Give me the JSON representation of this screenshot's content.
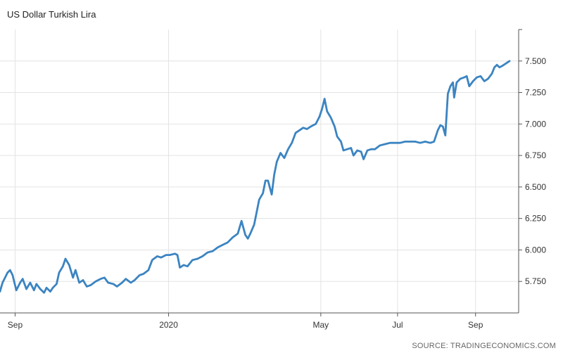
{
  "chart_data": {
    "type": "line",
    "title": "US Dollar Turkish Lira",
    "source": "SOURCE: TRADINGECONOMICS.COM",
    "xlabel": "",
    "ylabel": "",
    "x_ticks": [
      {
        "label": "Sep",
        "x": "2019-09-01"
      },
      {
        "label": "2020",
        "x": "2020-01-01"
      },
      {
        "label": "May",
        "x": "2020-05-01"
      },
      {
        "label": "Jul",
        "x": "2020-07-01"
      },
      {
        "label": "Sep",
        "x": "2020-09-01"
      }
    ],
    "y_ticks": [
      "5.750",
      "6.000",
      "6.250",
      "6.500",
      "6.750",
      "7.000",
      "7.250",
      "7.500"
    ],
    "ylim": [
      5.5,
      7.75
    ],
    "xlim": [
      "2019-08-20",
      "2020-09-28"
    ],
    "grid": true,
    "axis_side": "right",
    "line_color": "#3b84c1",
    "series": [
      {
        "name": "",
        "points": [
          [
            "2019-08-20",
            5.67
          ],
          [
            "2019-08-22",
            5.74
          ],
          [
            "2019-08-26",
            5.82
          ],
          [
            "2019-08-28",
            5.84
          ],
          [
            "2019-08-30",
            5.8
          ],
          [
            "2019-09-02",
            5.68
          ],
          [
            "2019-09-05",
            5.74
          ],
          [
            "2019-09-07",
            5.77
          ],
          [
            "2019-09-10",
            5.69
          ],
          [
            "2019-09-13",
            5.74
          ],
          [
            "2019-09-16",
            5.68
          ],
          [
            "2019-09-18",
            5.73
          ],
          [
            "2019-09-21",
            5.69
          ],
          [
            "2019-09-24",
            5.66
          ],
          [
            "2019-09-26",
            5.7
          ],
          [
            "2019-09-29",
            5.67
          ],
          [
            "2019-10-01",
            5.7
          ],
          [
            "2019-10-04",
            5.73
          ],
          [
            "2019-10-06",
            5.82
          ],
          [
            "2019-10-09",
            5.87
          ],
          [
            "2019-10-11",
            5.93
          ],
          [
            "2019-10-14",
            5.88
          ],
          [
            "2019-10-17",
            5.78
          ],
          [
            "2019-10-19",
            5.84
          ],
          [
            "2019-10-22",
            5.74
          ],
          [
            "2019-10-25",
            5.76
          ],
          [
            "2019-10-28",
            5.71
          ],
          [
            "2019-10-31",
            5.72
          ],
          [
            "2019-11-04",
            5.75
          ],
          [
            "2019-11-08",
            5.77
          ],
          [
            "2019-11-11",
            5.78
          ],
          [
            "2019-11-14",
            5.74
          ],
          [
            "2019-11-18",
            5.73
          ],
          [
            "2019-11-21",
            5.71
          ],
          [
            "2019-11-25",
            5.74
          ],
          [
            "2019-11-28",
            5.77
          ],
          [
            "2019-12-02",
            5.74
          ],
          [
            "2019-12-05",
            5.76
          ],
          [
            "2019-12-09",
            5.8
          ],
          [
            "2019-12-12",
            5.81
          ],
          [
            "2019-12-16",
            5.84
          ],
          [
            "2019-12-19",
            5.92
          ],
          [
            "2019-12-23",
            5.95
          ],
          [
            "2019-12-26",
            5.94
          ],
          [
            "2019-12-30",
            5.96
          ],
          [
            "2020-01-02",
            5.96
          ],
          [
            "2020-01-06",
            5.97
          ],
          [
            "2020-01-08",
            5.96
          ],
          [
            "2020-01-10",
            5.86
          ],
          [
            "2020-01-13",
            5.88
          ],
          [
            "2020-01-16",
            5.87
          ],
          [
            "2020-01-20",
            5.92
          ],
          [
            "2020-01-24",
            5.93
          ],
          [
            "2020-01-28",
            5.95
          ],
          [
            "2020-02-01",
            5.98
          ],
          [
            "2020-02-05",
            5.99
          ],
          [
            "2020-02-09",
            6.02
          ],
          [
            "2020-02-13",
            6.04
          ],
          [
            "2020-02-17",
            6.06
          ],
          [
            "2020-02-21",
            6.1
          ],
          [
            "2020-02-25",
            6.13
          ],
          [
            "2020-02-28",
            6.23
          ],
          [
            "2020-03-02",
            6.12
          ],
          [
            "2020-03-04",
            6.09
          ],
          [
            "2020-03-06",
            6.13
          ],
          [
            "2020-03-09",
            6.2
          ],
          [
            "2020-03-11",
            6.3
          ],
          [
            "2020-03-13",
            6.4
          ],
          [
            "2020-03-16",
            6.45
          ],
          [
            "2020-03-18",
            6.55
          ],
          [
            "2020-03-20",
            6.55
          ],
          [
            "2020-03-23",
            6.44
          ],
          [
            "2020-03-25",
            6.6
          ],
          [
            "2020-03-27",
            6.7
          ],
          [
            "2020-03-30",
            6.77
          ],
          [
            "2020-04-02",
            6.73
          ],
          [
            "2020-04-05",
            6.8
          ],
          [
            "2020-04-08",
            6.85
          ],
          [
            "2020-04-11",
            6.93
          ],
          [
            "2020-04-14",
            6.95
          ],
          [
            "2020-04-17",
            6.97
          ],
          [
            "2020-04-20",
            6.96
          ],
          [
            "2020-04-23",
            6.98
          ],
          [
            "2020-04-27",
            7.0
          ],
          [
            "2020-04-30",
            7.06
          ],
          [
            "2020-05-02",
            7.12
          ],
          [
            "2020-05-04",
            7.2
          ],
          [
            "2020-05-06",
            7.1
          ],
          [
            "2020-05-09",
            7.05
          ],
          [
            "2020-05-12",
            6.98
          ],
          [
            "2020-05-14",
            6.9
          ],
          [
            "2020-05-17",
            6.86
          ],
          [
            "2020-05-19",
            6.79
          ],
          [
            "2020-05-22",
            6.8
          ],
          [
            "2020-05-25",
            6.81
          ],
          [
            "2020-05-27",
            6.75
          ],
          [
            "2020-05-30",
            6.79
          ],
          [
            "2020-06-02",
            6.78
          ],
          [
            "2020-06-04",
            6.72
          ],
          [
            "2020-06-07",
            6.79
          ],
          [
            "2020-06-10",
            6.8
          ],
          [
            "2020-06-13",
            6.8
          ],
          [
            "2020-06-17",
            6.83
          ],
          [
            "2020-06-21",
            6.84
          ],
          [
            "2020-06-25",
            6.85
          ],
          [
            "2020-06-29",
            6.85
          ],
          [
            "2020-07-03",
            6.85
          ],
          [
            "2020-07-07",
            6.86
          ],
          [
            "2020-07-11",
            6.86
          ],
          [
            "2020-07-15",
            6.86
          ],
          [
            "2020-07-19",
            6.85
          ],
          [
            "2020-07-23",
            6.86
          ],
          [
            "2020-07-27",
            6.85
          ],
          [
            "2020-07-30",
            6.86
          ],
          [
            "2020-08-02",
            6.95
          ],
          [
            "2020-08-04",
            6.99
          ],
          [
            "2020-08-06",
            6.98
          ],
          [
            "2020-08-08",
            6.91
          ],
          [
            "2020-08-10",
            7.24
          ],
          [
            "2020-08-12",
            7.3
          ],
          [
            "2020-08-14",
            7.33
          ],
          [
            "2020-08-15",
            7.21
          ],
          [
            "2020-08-17",
            7.33
          ],
          [
            "2020-08-20",
            7.36
          ],
          [
            "2020-08-23",
            7.37
          ],
          [
            "2020-08-25",
            7.38
          ],
          [
            "2020-08-27",
            7.3
          ],
          [
            "2020-08-30",
            7.34
          ],
          [
            "2020-09-02",
            7.37
          ],
          [
            "2020-09-05",
            7.38
          ],
          [
            "2020-09-08",
            7.34
          ],
          [
            "2020-09-11",
            7.36
          ],
          [
            "2020-09-14",
            7.4
          ],
          [
            "2020-09-16",
            7.45
          ],
          [
            "2020-09-18",
            7.47
          ],
          [
            "2020-09-20",
            7.45
          ],
          [
            "2020-09-22",
            7.46
          ],
          [
            "2020-09-25",
            7.48
          ],
          [
            "2020-09-28",
            7.5
          ]
        ]
      }
    ]
  }
}
